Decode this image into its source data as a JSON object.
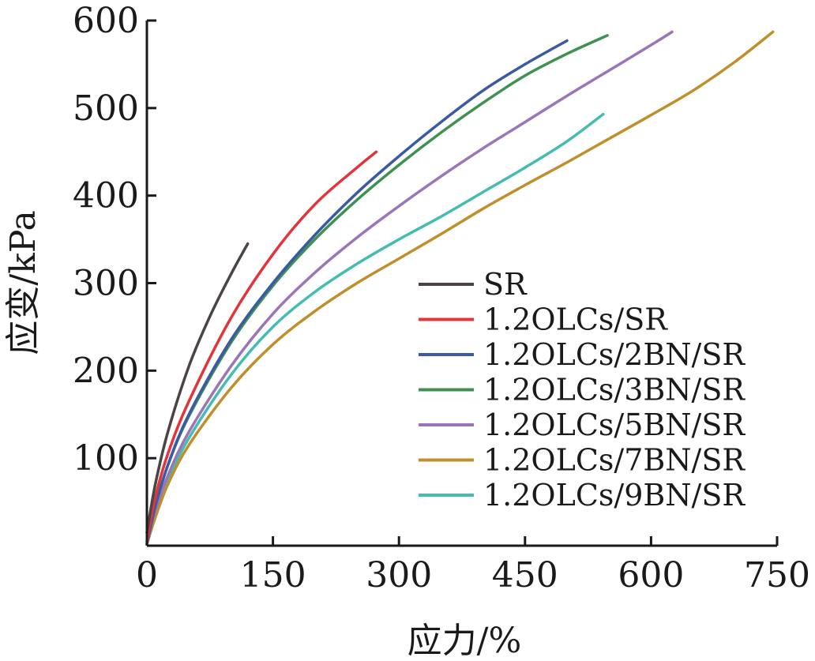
{
  "chart_data": {
    "type": "line",
    "title": "",
    "xlabel": "应力/%",
    "ylabel": "应变/kPa",
    "xlim": [
      0,
      750
    ],
    "ylim": [
      0,
      600
    ],
    "xticks": [
      0,
      150,
      300,
      450,
      600,
      750
    ],
    "yticks": [
      100,
      200,
      300,
      400,
      500,
      600
    ],
    "xtick_labels": [
      "0",
      "150",
      "300",
      "450",
      "600",
      "750"
    ],
    "ytick_labels": [
      "100",
      "200",
      "300",
      "400",
      "500",
      "600"
    ],
    "grid": false,
    "legend_position": "right",
    "series": [
      {
        "name": "SR",
        "color": "#4a4443",
        "x": [
          0,
          10,
          25,
          50,
          75,
          100,
          120
        ],
        "y": [
          15,
          70,
          130,
          205,
          262,
          310,
          345
        ]
      },
      {
        "name": "1.2OLCs/SR",
        "color": "#e0353a",
        "x": [
          0,
          10,
          25,
          50,
          100,
          150,
          200,
          250,
          273
        ],
        "y": [
          5,
          55,
          105,
          165,
          260,
          333,
          390,
          432,
          450
        ]
      },
      {
        "name": "1.2OLCs/2BN/SR",
        "color": "#3a5aa4",
        "x": [
          0,
          10,
          25,
          50,
          100,
          150,
          200,
          250,
          300,
          350,
          400,
          450,
          500
        ],
        "y": [
          2,
          45,
          92,
          150,
          235,
          300,
          355,
          403,
          445,
          484,
          520,
          550,
          577
        ]
      },
      {
        "name": "1.2OLCs/3BN/SR",
        "color": "#3e9150",
        "x": [
          0,
          10,
          25,
          50,
          100,
          150,
          200,
          250,
          300,
          350,
          400,
          450,
          500,
          548
        ],
        "y": [
          2,
          45,
          92,
          148,
          232,
          297,
          350,
          395,
          435,
          472,
          506,
          537,
          562,
          583
        ]
      },
      {
        "name": "1.2OLCs/5BN/SR",
        "color": "#9a76b8",
        "x": [
          0,
          10,
          25,
          50,
          100,
          150,
          200,
          250,
          300,
          350,
          400,
          450,
          500,
          550,
          600,
          625
        ],
        "y": [
          2,
          40,
          80,
          130,
          205,
          265,
          312,
          352,
          388,
          422,
          454,
          484,
          514,
          543,
          572,
          587
        ]
      },
      {
        "name": "1.2OLCs/7BN/SR",
        "color": "#bf8f2c",
        "x": [
          0,
          10,
          25,
          50,
          100,
          150,
          200,
          250,
          300,
          350,
          400,
          450,
          500,
          550,
          600,
          650,
          700,
          745
        ],
        "y": [
          2,
          32,
          70,
          115,
          180,
          230,
          268,
          300,
          328,
          356,
          385,
          412,
          438,
          465,
          492,
          520,
          553,
          587
        ]
      },
      {
        "name": "1.2OLCs/9BN/SR",
        "color": "#45bcb1",
        "x": [
          0,
          10,
          25,
          50,
          100,
          150,
          200,
          250,
          300,
          350,
          400,
          450,
          500,
          543
        ],
        "y": [
          2,
          38,
          75,
          123,
          195,
          250,
          290,
          322,
          350,
          376,
          404,
          432,
          462,
          493
        ]
      }
    ]
  }
}
